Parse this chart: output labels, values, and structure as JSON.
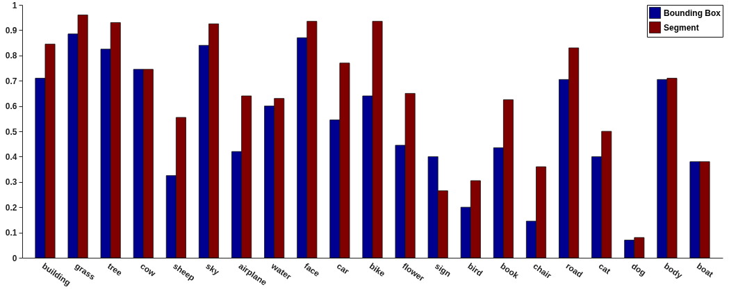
{
  "chart_data": {
    "type": "bar",
    "categories": [
      "building",
      "grass",
      "tree",
      "cow",
      "sheep",
      "sky",
      "airplane",
      "water",
      "face",
      "car",
      "bike",
      "flower",
      "sign",
      "bird",
      "book",
      "chair",
      "road",
      "cat",
      "dog",
      "body",
      "boat"
    ],
    "series": [
      {
        "name": "Bounding Box",
        "color": "#000090",
        "values": [
          0.71,
          0.885,
          0.825,
          0.745,
          0.325,
          0.84,
          0.42,
          0.6,
          0.87,
          0.545,
          0.64,
          0.445,
          0.4,
          0.2,
          0.435,
          0.145,
          0.705,
          0.4,
          0.07,
          0.705,
          0.38
        ]
      },
      {
        "name": "Segment",
        "color": "#800000",
        "values": [
          0.845,
          0.96,
          0.93,
          0.745,
          0.555,
          0.925,
          0.64,
          0.63,
          0.935,
          0.77,
          0.935,
          0.65,
          0.265,
          0.305,
          0.625,
          0.36,
          0.83,
          0.5,
          0.08,
          0.71,
          0.38
        ]
      }
    ],
    "ylim": [
      0,
      1
    ],
    "yticks": [
      0,
      0.1,
      0.2,
      0.3,
      0.4,
      0.5,
      0.6,
      0.7,
      0.8,
      0.9,
      1
    ],
    "legend": "top right",
    "grid": false
  }
}
